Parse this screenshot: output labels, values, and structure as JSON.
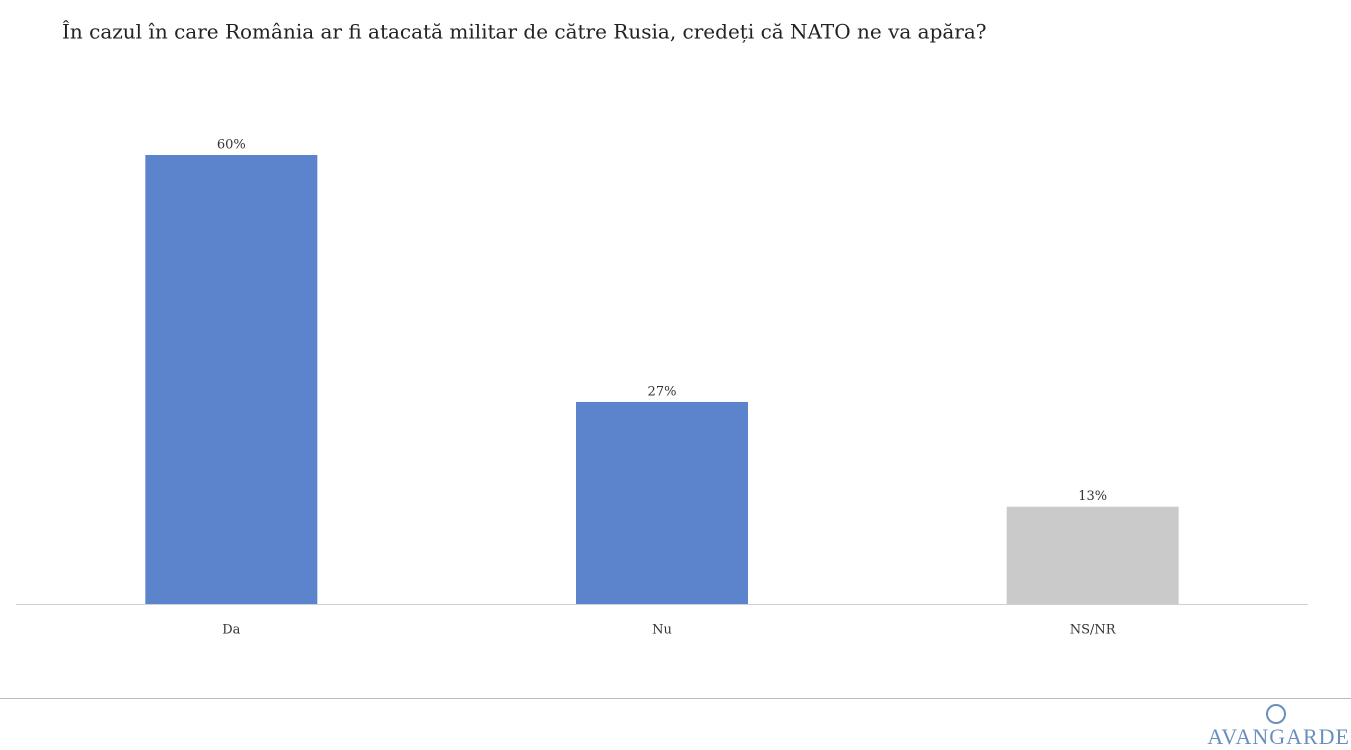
{
  "chart_data": {
    "type": "bar",
    "title": "În cazul în care România ar fi atacată militar de către Rusia, credeți că NATO ne va apăra?",
    "categories": [
      "Da",
      "Nu",
      "NS/NR"
    ],
    "values": [
      60,
      27,
      13
    ],
    "value_labels": [
      "60%",
      "27%",
      "13%"
    ],
    "colors": [
      "#5b84cc",
      "#5b84cc",
      "#cacaca"
    ]
  },
  "footer": {
    "logo": "AVANGARDE"
  }
}
